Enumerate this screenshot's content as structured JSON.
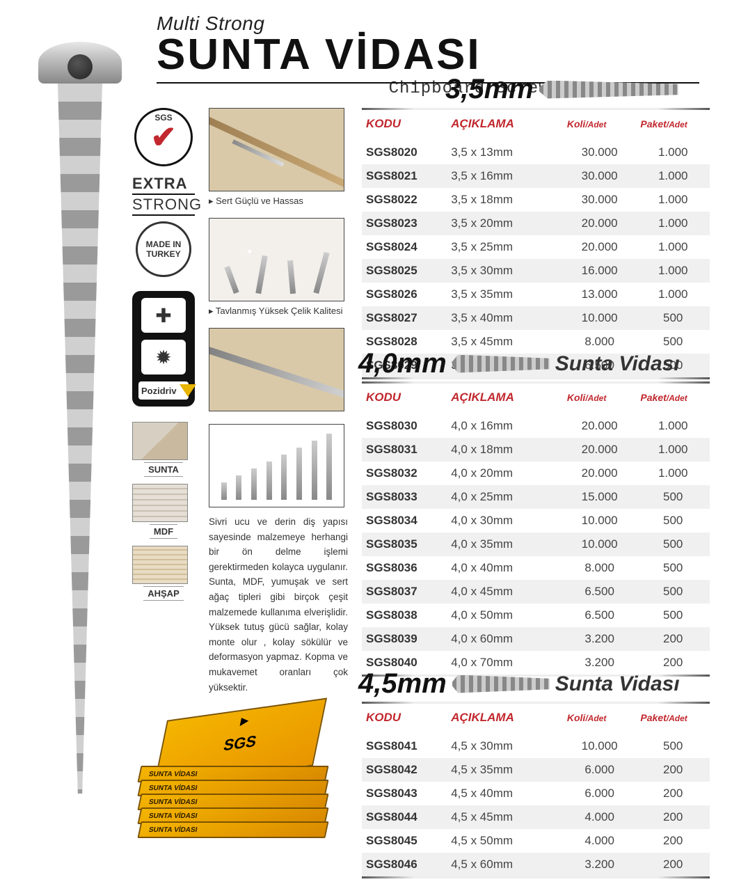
{
  "header": {
    "brand": "Multi Strong",
    "title": "SUNTA VİDASI",
    "subtitle": "Chipboard Screws"
  },
  "badges": {
    "sgs": "SGS",
    "extra": "EXTRA",
    "strong": "STRONG",
    "made_in_1": "MADE IN",
    "made_in_2": "TURKEY",
    "pozidriv": "Pozidriv"
  },
  "materials": {
    "sunta": "SUNTA",
    "mdf": "MDF",
    "ahsap": "AHŞAP"
  },
  "captions": {
    "c1": "Sert Güçlü ve Hassas",
    "c2": "Tavlanmış Yüksek Çelik Kalitesi"
  },
  "description": "Sivri ucu ve derin diş yapısı sayesinde malzemeye herhangi bir ön delme işlemi gerektirmeden kolayca uygulanır. Sunta, MDF, yumuşak ve sert ağaç tipleri gibi birçok çeşit malzemede kullanıma elverişlidir. Yüksek tutuş gücü sağlar, kolay monte olur , kolay sökülür ve deformasyon yapmaz. Kopma ve mukavemet oranları çok yüksektir.",
  "box_label": "SUNTA VİDASI",
  "box_brand": "SGS",
  "table_headers": {
    "code": "KODU",
    "desc": "AÇIKLAMA",
    "koli": "Koli",
    "paket": "Paket",
    "unit": "/Adet"
  },
  "sizes": {
    "s35": "3,5mm",
    "s40": "4,0mm",
    "s45": "4,5mm",
    "series_label": "Sunta Vidası"
  },
  "colors": {
    "accent_red": "#c1272d",
    "brand_yellow": "#f5b500",
    "row_stripe": "#f0f0f0",
    "text": "#333333"
  },
  "t35": [
    {
      "k": "SGS8020",
      "d": "3,5 x 13mm",
      "koli": "30.000",
      "paket": "1.000"
    },
    {
      "k": "SGS8021",
      "d": "3,5 x 16mm",
      "koli": "30.000",
      "paket": "1.000"
    },
    {
      "k": "SGS8022",
      "d": "3,5 x 18mm",
      "koli": "30.000",
      "paket": "1.000"
    },
    {
      "k": "SGS8023",
      "d": "3,5 x 20mm",
      "koli": "20.000",
      "paket": "1.000"
    },
    {
      "k": "SGS8024",
      "d": "3,5 x 25mm",
      "koli": "20.000",
      "paket": "1.000"
    },
    {
      "k": "SGS8025",
      "d": "3,5 x 30mm",
      "koli": "16.000",
      "paket": "1.000"
    },
    {
      "k": "SGS8026",
      "d": "3,5 x 35mm",
      "koli": "13.000",
      "paket": "1.000"
    },
    {
      "k": "SGS8027",
      "d": "3,5 x 40mm",
      "koli": "10.000",
      "paket": "500"
    },
    {
      "k": "SGS8028",
      "d": "3,5 x 45mm",
      "koli": "8.000",
      "paket": "500"
    },
    {
      "k": "SGS8029",
      "d": "3,5 x 50mm",
      "koli": "6.500",
      "paket": "500"
    }
  ],
  "t40": [
    {
      "k": "SGS8030",
      "d": "4,0 x 16mm",
      "koli": "20.000",
      "paket": "1.000"
    },
    {
      "k": "SGS8031",
      "d": "4,0 x 18mm",
      "koli": "20.000",
      "paket": "1.000"
    },
    {
      "k": "SGS8032",
      "d": "4,0 x 20mm",
      "koli": "20.000",
      "paket": "1.000"
    },
    {
      "k": "SGS8033",
      "d": "4,0 x 25mm",
      "koli": "15.000",
      "paket": "500"
    },
    {
      "k": "SGS8034",
      "d": "4,0 x 30mm",
      "koli": "10.000",
      "paket": "500"
    },
    {
      "k": "SGS8035",
      "d": "4,0 x 35mm",
      "koli": "10.000",
      "paket": "500"
    },
    {
      "k": "SGS8036",
      "d": "4,0 x 40mm",
      "koli": "8.000",
      "paket": "500"
    },
    {
      "k": "SGS8037",
      "d": "4,0 x 45mm",
      "koli": "6.500",
      "paket": "500"
    },
    {
      "k": "SGS8038",
      "d": "4,0 x 50mm",
      "koli": "6.500",
      "paket": "500"
    },
    {
      "k": "SGS8039",
      "d": "4,0 x 60mm",
      "koli": "3.200",
      "paket": "200"
    },
    {
      "k": "SGS8040",
      "d": "4,0 x 70mm",
      "koli": "3.200",
      "paket": "200"
    }
  ],
  "t45": [
    {
      "k": "SGS8041",
      "d": "4,5 x 30mm",
      "koli": "10.000",
      "paket": "500"
    },
    {
      "k": "SGS8042",
      "d": "4,5 x 35mm",
      "koli": "6.000",
      "paket": "200"
    },
    {
      "k": "SGS8043",
      "d": "4,5 x 40mm",
      "koli": "6.000",
      "paket": "200"
    },
    {
      "k": "SGS8044",
      "d": "4,5 x 45mm",
      "koli": "4.000",
      "paket": "200"
    },
    {
      "k": "SGS8045",
      "d": "4,5 x 50mm",
      "koli": "4.000",
      "paket": "200"
    },
    {
      "k": "SGS8046",
      "d": "4,5 x 60mm",
      "koli": "3.200",
      "paket": "200"
    }
  ]
}
